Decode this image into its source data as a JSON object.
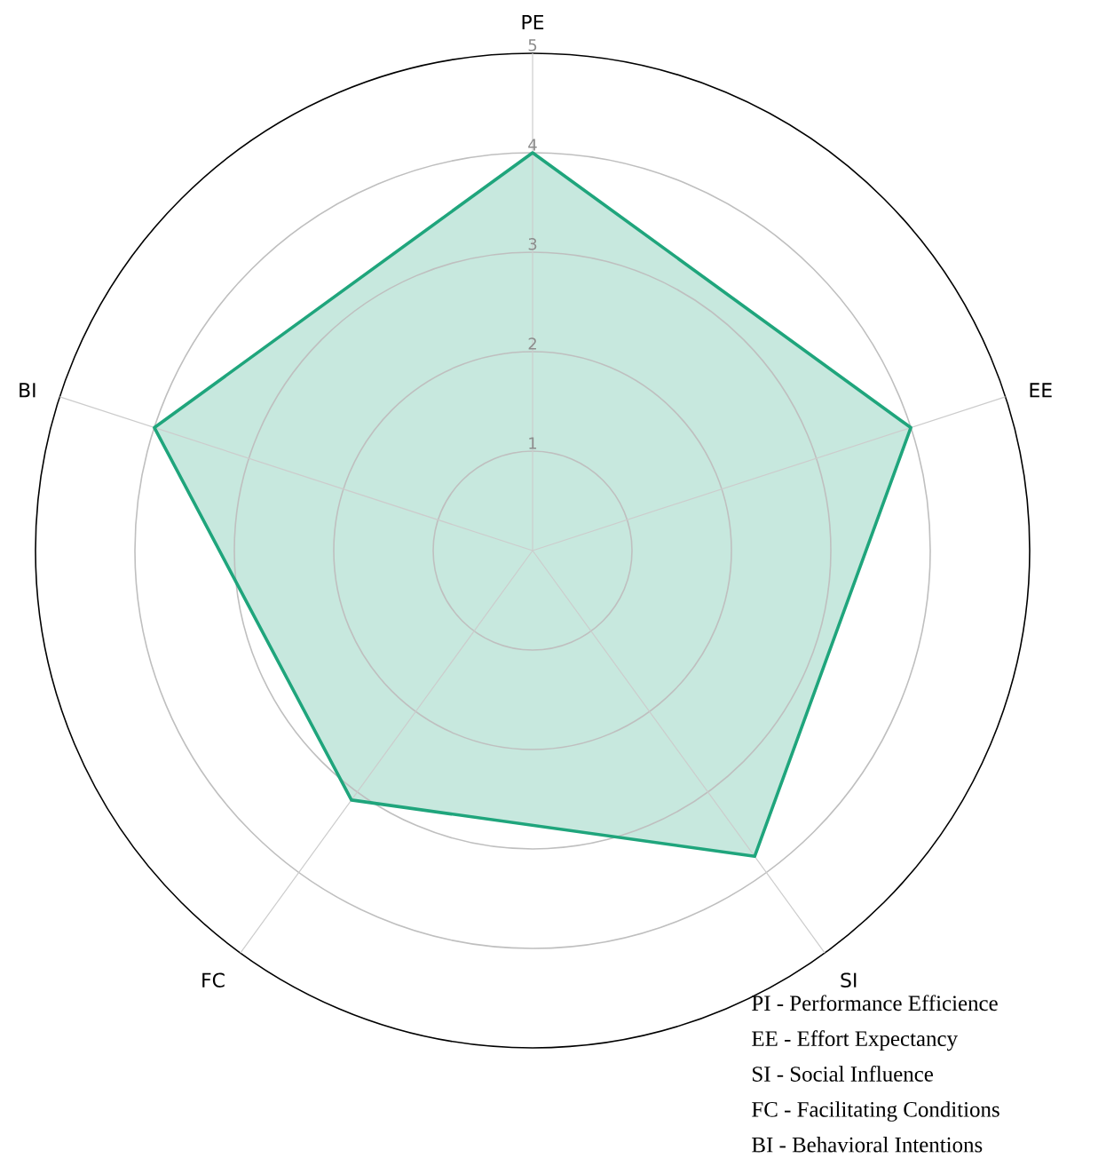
{
  "chart_data": {
    "type": "radar",
    "categories": [
      "PE",
      "EE",
      "SI",
      "FC",
      "BI"
    ],
    "series": [
      {
        "color": "#1fa57c",
        "values": [
          4.0,
          4.0,
          3.8,
          3.1,
          4.0
        ]
      }
    ],
    "ylim": [
      0,
      5
    ],
    "yticks": [
      1,
      2,
      3,
      4,
      5
    ],
    "grid": true,
    "annotations": [
      "PI - Performance Efficience",
      "EE - Effort Expectancy",
      "SI - Social Influence",
      "FC - Facilitating Conditions",
      "BI - Behavioral Intentions"
    ]
  }
}
